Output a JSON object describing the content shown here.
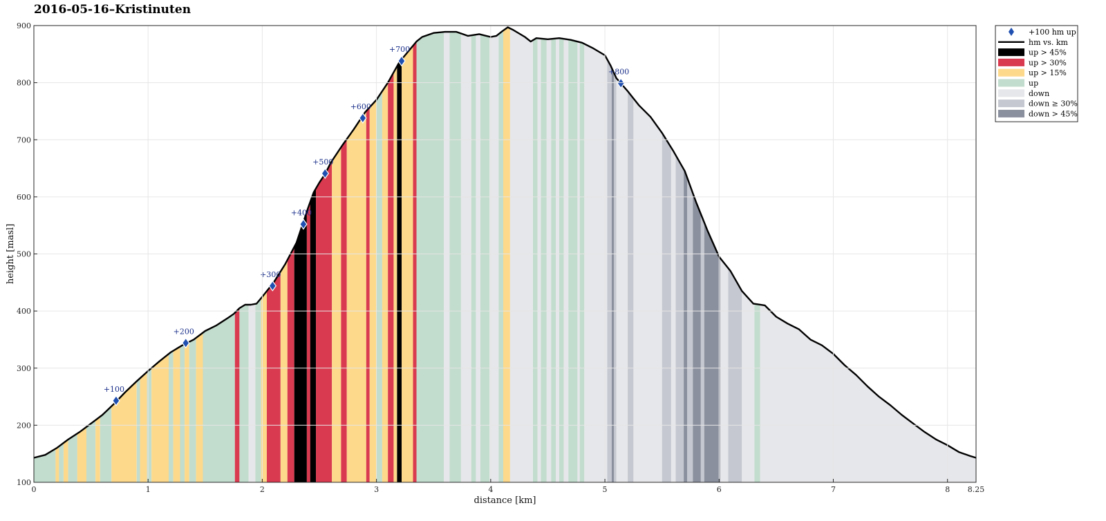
{
  "chart_data": {
    "type": "area",
    "title": "2016-05-16–Kristinuten",
    "xlabel": "distance [km]",
    "ylabel": "height [masl]",
    "xlim": [
      0,
      8.25
    ],
    "ylim": [
      100,
      900
    ],
    "xticks": [
      0,
      1,
      2,
      3,
      4,
      5,
      6,
      7,
      8,
      8.25
    ],
    "xtick_labels": [
      "0",
      "1",
      "2",
      "3",
      "4",
      "5",
      "6",
      "7",
      "8",
      "8.25"
    ],
    "yticks": [
      100,
      200,
      300,
      400,
      500,
      600,
      700,
      800,
      900
    ],
    "grid": true,
    "legend_position": "outside-top-right",
    "colors": {
      "line": "#000000",
      "marker": "#1f4fb0",
      "up45": "#000000",
      "up30": "#d93a4f",
      "up15": "#fdd98b",
      "up": "#c2dccd",
      "down": "#e6e7ea",
      "down30": "#c5c8d0",
      "down45": "#8b909e"
    },
    "legend": [
      {
        "key": "marker",
        "label": "+100 hm up"
      },
      {
        "key": "line",
        "label": "hm vs. km"
      },
      {
        "key": "up45",
        "label": "up > 45%"
      },
      {
        "key": "up30",
        "label": "up > 30%"
      },
      {
        "key": "up15",
        "label": "up > 15%"
      },
      {
        "key": "up",
        "label": "up"
      },
      {
        "key": "down",
        "label": "down"
      },
      {
        "key": "down30",
        "label": "down ≥ 30%"
      },
      {
        "key": "down45",
        "label": "down > 45%"
      }
    ],
    "profile": [
      [
        0,
        143
      ],
      [
        0.1,
        148
      ],
      [
        0.2,
        160
      ],
      [
        0.3,
        175
      ],
      [
        0.4,
        188
      ],
      [
        0.5,
        203
      ],
      [
        0.6,
        218
      ],
      [
        0.7,
        237
      ],
      [
        0.8,
        258
      ],
      [
        0.9,
        277
      ],
      [
        1.0,
        295
      ],
      [
        1.1,
        312
      ],
      [
        1.2,
        328
      ],
      [
        1.3,
        340
      ],
      [
        1.4,
        350
      ],
      [
        1.5,
        365
      ],
      [
        1.6,
        375
      ],
      [
        1.7,
        388
      ],
      [
        1.75,
        395
      ],
      [
        1.8,
        405
      ],
      [
        1.85,
        411
      ],
      [
        1.9,
        411
      ],
      [
        1.95,
        413
      ],
      [
        2.0,
        425
      ],
      [
        2.1,
        450
      ],
      [
        2.2,
        482
      ],
      [
        2.3,
        520
      ],
      [
        2.35,
        550
      ],
      [
        2.4,
        580
      ],
      [
        2.45,
        608
      ],
      [
        2.5,
        625
      ],
      [
        2.55,
        640
      ],
      [
        2.6,
        660
      ],
      [
        2.7,
        690
      ],
      [
        2.8,
        718
      ],
      [
        2.9,
        748
      ],
      [
        3.0,
        770
      ],
      [
        3.1,
        800
      ],
      [
        3.2,
        836
      ],
      [
        3.3,
        860
      ],
      [
        3.35,
        872
      ],
      [
        3.4,
        880
      ],
      [
        3.5,
        887
      ],
      [
        3.6,
        889
      ],
      [
        3.7,
        889
      ],
      [
        3.8,
        882
      ],
      [
        3.9,
        885
      ],
      [
        4.0,
        880
      ],
      [
        4.05,
        882
      ],
      [
        4.1,
        890
      ],
      [
        4.15,
        897
      ],
      [
        4.2,
        892
      ],
      [
        4.3,
        880
      ],
      [
        4.35,
        872
      ],
      [
        4.4,
        878
      ],
      [
        4.5,
        876
      ],
      [
        4.6,
        878
      ],
      [
        4.7,
        875
      ],
      [
        4.8,
        870
      ],
      [
        4.9,
        860
      ],
      [
        5.0,
        848
      ],
      [
        5.05,
        830
      ],
      [
        5.1,
        808
      ],
      [
        5.2,
        785
      ],
      [
        5.3,
        760
      ],
      [
        5.4,
        740
      ],
      [
        5.5,
        712
      ],
      [
        5.6,
        680
      ],
      [
        5.7,
        645
      ],
      [
        5.8,
        590
      ],
      [
        5.9,
        540
      ],
      [
        6.0,
        495
      ],
      [
        6.1,
        470
      ],
      [
        6.2,
        435
      ],
      [
        6.3,
        413
      ],
      [
        6.4,
        410
      ],
      [
        6.5,
        390
      ],
      [
        6.6,
        378
      ],
      [
        6.7,
        368
      ],
      [
        6.8,
        350
      ],
      [
        6.9,
        340
      ],
      [
        7.0,
        325
      ],
      [
        7.1,
        305
      ],
      [
        7.2,
        288
      ],
      [
        7.3,
        268
      ],
      [
        7.4,
        250
      ],
      [
        7.5,
        235
      ],
      [
        7.6,
        218
      ],
      [
        7.7,
        203
      ],
      [
        7.8,
        188
      ],
      [
        7.9,
        175
      ],
      [
        8.0,
        165
      ],
      [
        8.1,
        153
      ],
      [
        8.2,
        146
      ],
      [
        8.25,
        143
      ]
    ],
    "segments": [
      [
        "up",
        0,
        0.19
      ],
      [
        "up15",
        0.19,
        0.22
      ],
      [
        "up",
        0.22,
        0.26
      ],
      [
        "up15",
        0.26,
        0.3
      ],
      [
        "up",
        0.3,
        0.38
      ],
      [
        "up15",
        0.38,
        0.46
      ],
      [
        "up",
        0.46,
        0.54
      ],
      [
        "up15",
        0.54,
        0.58
      ],
      [
        "up",
        0.58,
        0.68
      ],
      [
        "up15",
        0.68,
        0.9
      ],
      [
        "up",
        0.9,
        0.93
      ],
      [
        "up15",
        0.93,
        0.99
      ],
      [
        "up",
        0.99,
        1.03
      ],
      [
        "up15",
        1.03,
        1.18
      ],
      [
        "up",
        1.18,
        1.22
      ],
      [
        "up15",
        1.22,
        1.28
      ],
      [
        "up",
        1.28,
        1.32
      ],
      [
        "up15",
        1.32,
        1.36
      ],
      [
        "up",
        1.36,
        1.42
      ],
      [
        "up15",
        1.42,
        1.48
      ],
      [
        "up",
        1.48,
        1.76
      ],
      [
        "up30",
        1.76,
        1.8
      ],
      [
        "up",
        1.8,
        1.88
      ],
      [
        "down",
        1.88,
        1.94
      ],
      [
        "up",
        1.94,
        1.99
      ],
      [
        "up15",
        1.99,
        2.04
      ],
      [
        "up30",
        2.04,
        2.16
      ],
      [
        "up15",
        2.16,
        2.22
      ],
      [
        "up30",
        2.22,
        2.28
      ],
      [
        "up45",
        2.28,
        2.39
      ],
      [
        "up30",
        2.39,
        2.42
      ],
      [
        "up45",
        2.42,
        2.47
      ],
      [
        "up30",
        2.47,
        2.61
      ],
      [
        "up15",
        2.61,
        2.69
      ],
      [
        "up30",
        2.69,
        2.74
      ],
      [
        "up15",
        2.74,
        2.91
      ],
      [
        "up30",
        2.91,
        2.94
      ],
      [
        "up15",
        2.94,
        3.0
      ],
      [
        "up",
        3.0,
        3.05
      ],
      [
        "up15",
        3.05,
        3.1
      ],
      [
        "up30",
        3.1,
        3.15
      ],
      [
        "up15",
        3.15,
        3.18
      ],
      [
        "up45",
        3.18,
        3.22
      ],
      [
        "up15",
        3.22,
        3.32
      ],
      [
        "up30",
        3.32,
        3.35
      ],
      [
        "up",
        3.35,
        3.59
      ],
      [
        "down",
        3.59,
        3.64
      ],
      [
        "up",
        3.64,
        3.74
      ],
      [
        "down",
        3.74,
        3.83
      ],
      [
        "up",
        3.83,
        3.87
      ],
      [
        "down",
        3.87,
        3.91
      ],
      [
        "up",
        3.91,
        3.99
      ],
      [
        "down",
        3.99,
        4.07
      ],
      [
        "up",
        4.07,
        4.11
      ],
      [
        "up15",
        4.11,
        4.17
      ],
      [
        "down",
        4.17,
        4.37
      ],
      [
        "up",
        4.37,
        4.41
      ],
      [
        "down",
        4.41,
        4.44
      ],
      [
        "up",
        4.44,
        4.49
      ],
      [
        "down",
        4.49,
        4.53
      ],
      [
        "up",
        4.53,
        4.57
      ],
      [
        "down",
        4.57,
        4.6
      ],
      [
        "up",
        4.6,
        4.64
      ],
      [
        "down",
        4.64,
        4.68
      ],
      [
        "up",
        4.68,
        4.76
      ],
      [
        "down",
        4.76,
        4.78
      ],
      [
        "up",
        4.78,
        4.82
      ],
      [
        "down",
        4.82,
        5.02
      ],
      [
        "down30",
        5.02,
        5.06
      ],
      [
        "down45",
        5.06,
        5.08
      ],
      [
        "down30",
        5.08,
        5.1
      ],
      [
        "down",
        5.1,
        5.2
      ],
      [
        "down30",
        5.2,
        5.25
      ],
      [
        "down",
        5.25,
        5.5
      ],
      [
        "down30",
        5.5,
        5.58
      ],
      [
        "down",
        5.58,
        5.62
      ],
      [
        "down30",
        5.62,
        5.69
      ],
      [
        "down45",
        5.69,
        5.72
      ],
      [
        "down30",
        5.72,
        5.77
      ],
      [
        "down45",
        5.77,
        5.84
      ],
      [
        "down30",
        5.84,
        5.87
      ],
      [
        "down45",
        5.87,
        6.01
      ],
      [
        "down",
        6.01,
        6.08
      ],
      [
        "down30",
        6.08,
        6.2
      ],
      [
        "down",
        6.2,
        6.31
      ],
      [
        "up",
        6.31,
        6.36
      ],
      [
        "down",
        6.36,
        8.25
      ]
    ],
    "markers": [
      {
        "x": 0.72,
        "y": 243,
        "label": "+100"
      },
      {
        "x": 1.33,
        "y": 344,
        "label": "+200"
      },
      {
        "x": 2.09,
        "y": 444,
        "label": "+300"
      },
      {
        "x": 2.36,
        "y": 552,
        "label": "+400"
      },
      {
        "x": 2.55,
        "y": 641,
        "label": "+500"
      },
      {
        "x": 2.88,
        "y": 738,
        "label": "+600"
      },
      {
        "x": 3.22,
        "y": 838,
        "label": "+700"
      },
      {
        "x": 5.14,
        "y": 799,
        "label": "+800"
      }
    ]
  }
}
